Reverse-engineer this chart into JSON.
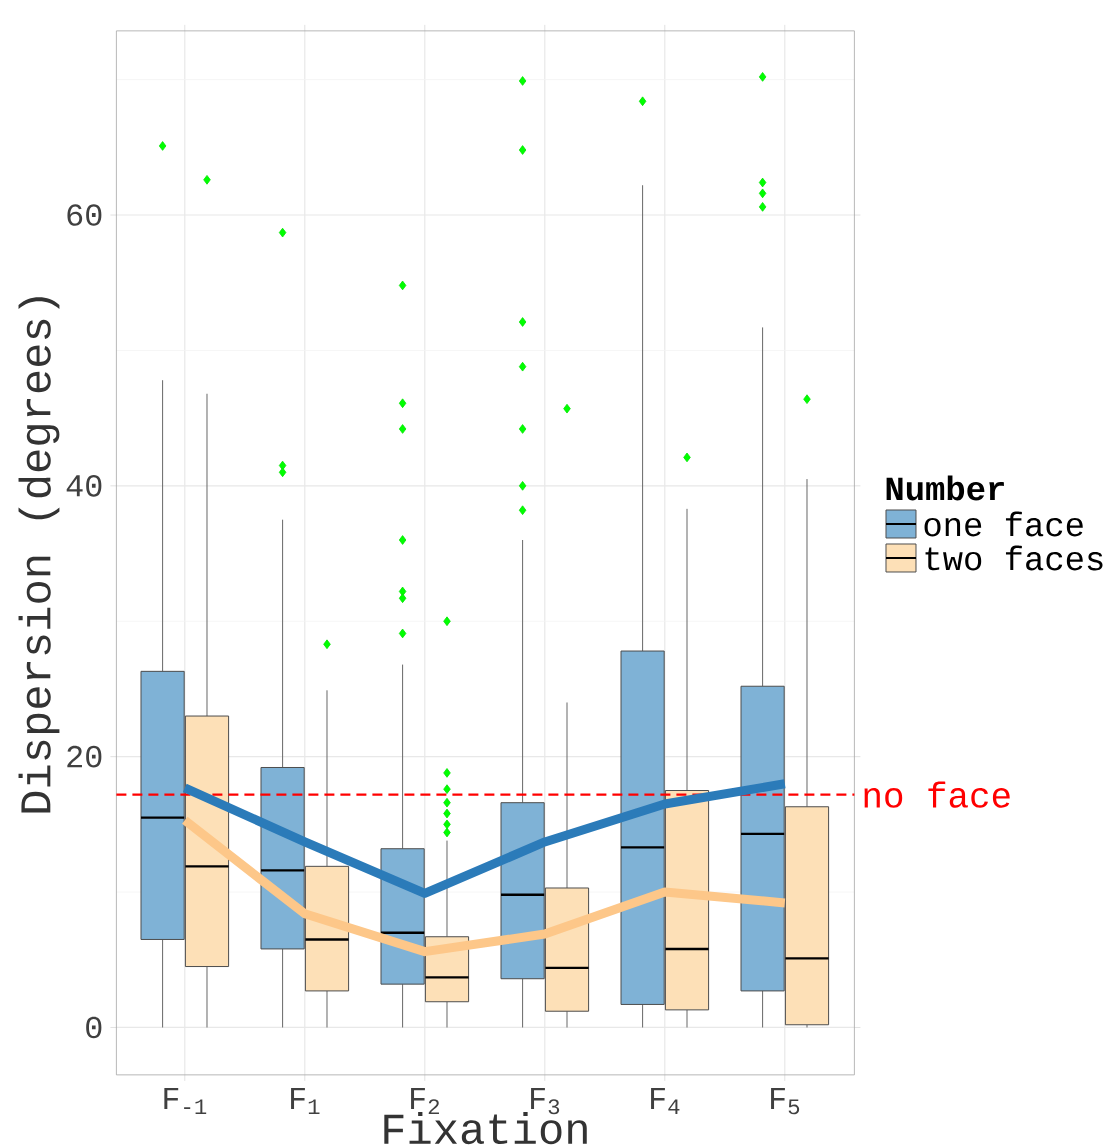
{
  "chart_data": {
    "type": "box",
    "xlabel": "Fixation",
    "ylabel": "Dispersion (degrees)",
    "legend_title": "Number",
    "legend": "right",
    "grid": true,
    "categories": [
      "F$_{-1}$",
      "F$_{1}$",
      "F$_{2}$",
      "F$_{3}$",
      "F$_{4}$",
      "F$_{5}$"
    ],
    "ylim": [
      -3.5,
      73.6
    ],
    "yticks": [
      0,
      20,
      40,
      60
    ],
    "ref_lines": [
      {
        "axis": "y",
        "value": 17.2,
        "label": "no face",
        "color": "#ff0000",
        "line_style": "dashed"
      }
    ],
    "series": [
      {
        "name": "one face",
        "color": "#7fb2d6",
        "boxes": [
          {
            "low": 0,
            "q1": 6.5,
            "median": 15.5,
            "q3": 26.3,
            "high": 47.8,
            "outliers": [
              65.1
            ]
          },
          {
            "low": 0,
            "q1": 5.8,
            "median": 11.6,
            "q3": 19.2,
            "high": 37.5,
            "outliers": [
              58.7,
              41.5,
              41.0
            ]
          },
          {
            "low": 0,
            "q1": 3.2,
            "median": 7.0,
            "q3": 13.2,
            "high": 26.8,
            "outliers": [
              54.8,
              46.1,
              44.2,
              36.0,
              32.2,
              31.7,
              29.1
            ]
          },
          {
            "low": 0,
            "q1": 3.6,
            "median": 9.8,
            "q3": 16.6,
            "high": 36.0,
            "outliers": [
              69.9,
              64.8,
              52.1,
              48.8,
              44.2,
              40.0,
              38.2
            ]
          },
          {
            "low": 0,
            "q1": 1.7,
            "median": 13.3,
            "q3": 27.8,
            "high": 62.2,
            "outliers": [
              68.4
            ]
          },
          {
            "low": 0,
            "q1": 2.7,
            "median": 14.3,
            "q3": 25.2,
            "high": 51.7,
            "outliers": [
              70.2,
              62.4,
              61.6,
              60.6
            ]
          }
        ]
      },
      {
        "name": "two faces",
        "color": "#fde0b7",
        "boxes": [
          {
            "low": 0,
            "q1": 4.5,
            "median": 11.9,
            "q3": 23.0,
            "high": 46.8,
            "outliers": [
              62.6
            ]
          },
          {
            "low": 0,
            "q1": 2.7,
            "median": 6.5,
            "q3": 11.9,
            "high": 24.9,
            "outliers": [
              28.3
            ]
          },
          {
            "low": 0,
            "q1": 1.9,
            "median": 3.7,
            "q3": 6.7,
            "high": 13.8,
            "outliers": [
              30.0,
              18.8,
              17.6,
              16.6,
              15.8,
              15.0,
              14.4
            ]
          },
          {
            "low": 0,
            "q1": 1.2,
            "median": 4.4,
            "q3": 10.3,
            "high": 24.0,
            "outliers": [
              45.7
            ]
          },
          {
            "low": 0,
            "q1": 1.3,
            "median": 5.8,
            "q3": 17.5,
            "high": 38.3,
            "outliers": [
              42.1
            ]
          },
          {
            "low": 0,
            "q1": 0.2,
            "median": 5.1,
            "q3": 16.3,
            "high": 40.5,
            "outliers": [
              46.4
            ]
          }
        ]
      },
      {
        "type": "line",
        "color": "#2b7bb9",
        "values": [
          17.7,
          13.7,
          9.9,
          13.7,
          16.5,
          18.0
        ]
      },
      {
        "type": "line",
        "color": "#fdc789",
        "values": [
          15.3,
          8.4,
          5.6,
          6.9,
          10.0,
          9.2
        ]
      }
    ]
  }
}
